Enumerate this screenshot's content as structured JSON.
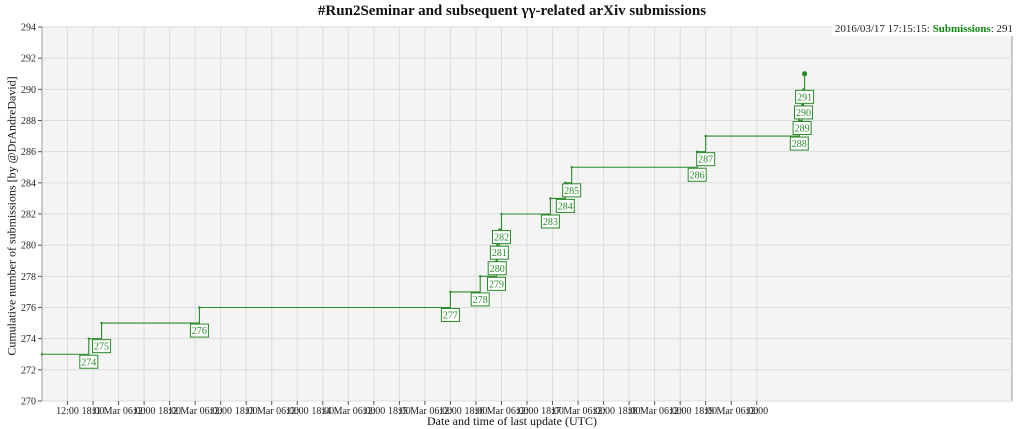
{
  "chart_data": {
    "type": "line",
    "title": "#Run2Seminar and subsequent γγ-related arXiv submissions",
    "xlabel": "Date and time of last update (UTC)",
    "ylabel": "Cumulative number of submissions [by @DrAndreDavid]",
    "ylim": [
      270,
      294
    ],
    "yticks": [
      270,
      272,
      274,
      276,
      278,
      280,
      282,
      284,
      286,
      288,
      290,
      292,
      294
    ],
    "xlim": [
      "2016-03-10T06:00",
      "2016-03-19T18:00"
    ],
    "xticks": [
      "12:00",
      "18:00",
      "11 Mar 06:00",
      "12:00",
      "18:00",
      "12 Mar 06:00",
      "12:00",
      "18:00",
      "13 Mar 06:00",
      "12:00",
      "18:00",
      "14 Mar 06:00",
      "12:00",
      "18:00",
      "15 Mar 06:00",
      "12:00",
      "18:00",
      "16 Mar 06:00",
      "12:00",
      "18:00",
      "17 Mar 06:00",
      "12:00",
      "18:00",
      "18 Mar 06:00",
      "12:00",
      "18:00",
      "19 Mar 06:00",
      "12:00"
    ],
    "grid": true,
    "legend": {
      "position": "top-right",
      "timestamp": "2016/03/17 17:15:15:",
      "key": "Submissions",
      "value": ": 291"
    },
    "color": "#2a8a2a",
    "series": [
      {
        "name": "Submissions",
        "points": [
          {
            "x": "2016-03-10T06:00",
            "y": 273,
            "label": ""
          },
          {
            "x": "2016-03-10T17:00",
            "y": 274,
            "label": "274"
          },
          {
            "x": "2016-03-10T20:00",
            "y": 275,
            "label": "275"
          },
          {
            "x": "2016-03-11T19:00",
            "y": 276,
            "label": "276"
          },
          {
            "x": "2016-03-14T06:00",
            "y": 277,
            "label": "277"
          },
          {
            "x": "2016-03-14T13:00",
            "y": 278,
            "label": "278"
          },
          {
            "x": "2016-03-14T16:50",
            "y": 279,
            "label": "279"
          },
          {
            "x": "2016-03-14T17:00",
            "y": 280,
            "label": "280"
          },
          {
            "x": "2016-03-14T17:30",
            "y": 281,
            "label": "281"
          },
          {
            "x": "2016-03-14T18:00",
            "y": 282,
            "label": "282"
          },
          {
            "x": "2016-03-15T05:30",
            "y": 283,
            "label": "283"
          },
          {
            "x": "2016-03-15T09:00",
            "y": 284,
            "label": "284"
          },
          {
            "x": "2016-03-15T10:30",
            "y": 285,
            "label": "285"
          },
          {
            "x": "2016-03-16T16:00",
            "y": 286,
            "label": "286"
          },
          {
            "x": "2016-03-16T18:00",
            "y": 287,
            "label": "287"
          },
          {
            "x": "2016-03-17T16:00",
            "y": 288,
            "label": "288"
          },
          {
            "x": "2016-03-17T16:40",
            "y": 289,
            "label": "289"
          },
          {
            "x": "2016-03-17T17:00",
            "y": 290,
            "label": "290"
          },
          {
            "x": "2016-03-17T17:15",
            "y": 291,
            "label": "291"
          }
        ]
      }
    ]
  }
}
